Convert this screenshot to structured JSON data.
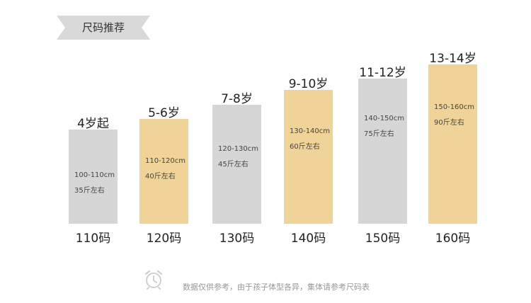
{
  "header": {
    "title": "尺码推荐"
  },
  "sizes": [
    {
      "age": "4岁起",
      "height": "100-110cm",
      "weight": "35斤左右",
      "size": "110码"
    },
    {
      "age": "5-6岁",
      "height": "110-120cm",
      "weight": "40斤左右",
      "size": "120码"
    },
    {
      "age": "7-8岁",
      "height": "120-130cm",
      "weight": "45斤左右",
      "size": "130码"
    },
    {
      "age": "9-10岁",
      "height": "130-140cm",
      "weight": "60斤左右",
      "size": "140码"
    },
    {
      "age": "11-12岁",
      "height": "140-150cm",
      "weight": "75斤左右",
      "size": "150码"
    },
    {
      "age": "13-14岁",
      "height": "150-160cm",
      "weight": "90斤左右",
      "size": "160码"
    }
  ],
  "footer": {
    "note": "数据仅供参考，由于孩子体型各异，集体请参考尺码表"
  },
  "colors": {
    "gray_bar": "#d6d6d6",
    "gold_bar": "#efd399",
    "ribbon": "#d9d9d9"
  },
  "icons": {
    "ribbon": "ribbon-banner-icon",
    "note": "alarm-clock-icon"
  }
}
